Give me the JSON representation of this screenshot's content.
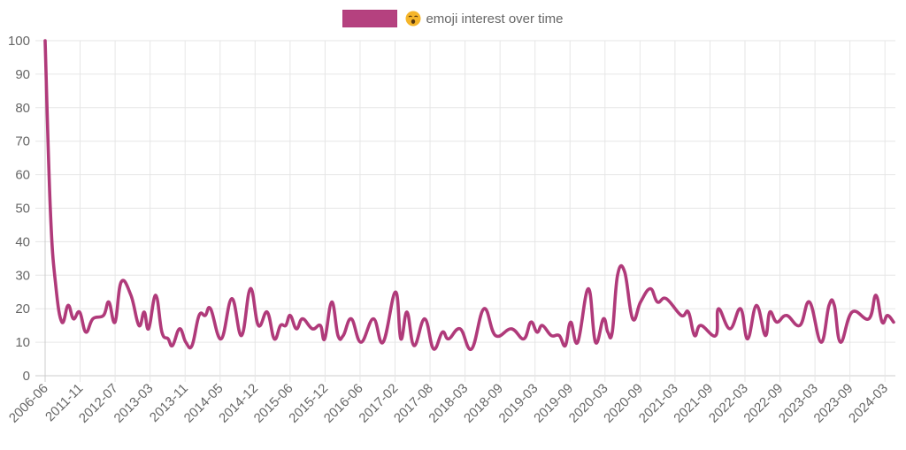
{
  "chart_data": {
    "type": "line",
    "legend": {
      "label": "emoji interest over time",
      "emoji_icon": "tired-face-emoji",
      "placement": "top"
    },
    "series_color": "#b03a7a",
    "grid": true,
    "ylim": [
      0,
      100
    ],
    "y_ticks": [
      "0",
      "10",
      "20",
      "30",
      "40",
      "50",
      "60",
      "70",
      "80",
      "90",
      "100"
    ],
    "x_tick_labels": [
      "2006-06",
      "2011-11",
      "2012-07",
      "2013-03",
      "2013-11",
      "2014-05",
      "2014-12",
      "2015-06",
      "2015-12",
      "2016-06",
      "2017-02",
      "2017-08",
      "2018-03",
      "2018-09",
      "2019-03",
      "2019-09",
      "2020-03",
      "2020-09",
      "2021-03",
      "2021-09",
      "2022-03",
      "2022-09",
      "2023-03",
      "2023-09",
      "2024-03"
    ],
    "values": [
      100,
      49,
      27,
      16,
      21,
      17,
      19,
      13,
      17,
      18,
      22,
      16,
      28,
      24,
      15,
      19,
      14,
      24,
      13,
      11,
      9,
      14,
      10,
      9,
      18,
      18,
      20,
      11,
      23,
      12,
      26,
      15,
      19,
      11,
      15,
      15,
      18,
      14,
      17,
      14,
      15,
      11,
      22,
      12,
      12,
      17,
      10,
      17,
      10,
      25,
      11,
      19,
      9,
      17,
      8,
      13,
      11,
      14,
      8,
      20,
      12,
      14,
      11,
      16,
      13,
      15,
      12,
      12,
      9,
      16,
      10,
      26,
      10,
      17,
      13,
      13,
      30,
      31,
      17,
      22,
      26,
      22,
      23,
      18,
      19,
      12,
      15,
      12,
      20,
      14,
      20,
      11,
      21,
      12,
      19,
      16,
      18,
      15,
      22,
      10,
      21,
      21,
      10,
      19,
      17,
      24,
      16,
      18,
      16,
      23,
      21
    ]
  }
}
